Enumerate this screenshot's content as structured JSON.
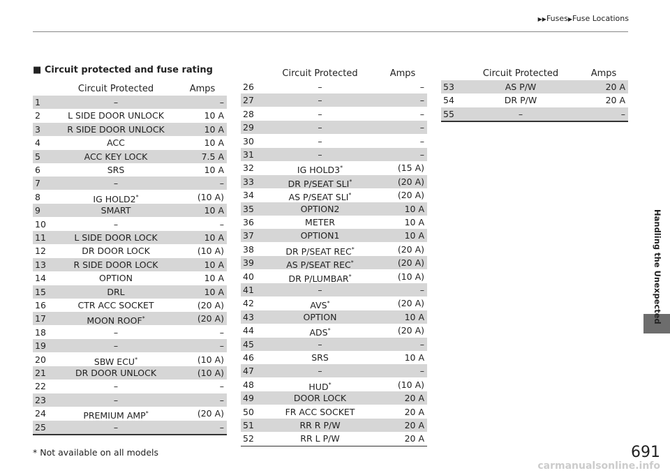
{
  "header": {
    "breadcrumb": [
      "Fuses",
      "Fuse Locations"
    ]
  },
  "section_title": "Circuit protected and fuse rating",
  "tables": [
    {
      "columns": [
        "Circuit Protected",
        "Amps"
      ],
      "rows": [
        [
          "1",
          "–",
          "–"
        ],
        [
          "2",
          "L SIDE DOOR UNLOCK",
          "10 A"
        ],
        [
          "3",
          "R SIDE DOOR UNLOCK",
          "10 A"
        ],
        [
          "4",
          "ACC",
          "10 A"
        ],
        [
          "5",
          "ACC KEY LOCK",
          "7.5 A"
        ],
        [
          "6",
          "SRS",
          "10 A"
        ],
        [
          "7",
          "–",
          "–"
        ],
        [
          "8",
          "IG HOLD2",
          "(10 A)",
          "*"
        ],
        [
          "9",
          "SMART",
          "10 A"
        ],
        [
          "10",
          "–",
          "–"
        ],
        [
          "11",
          "L SIDE DOOR LOCK",
          "10 A"
        ],
        [
          "12",
          "DR DOOR LOCK",
          "(10 A)"
        ],
        [
          "13",
          "R SIDE DOOR LOCK",
          "10 A"
        ],
        [
          "14",
          "OPTION",
          "10 A"
        ],
        [
          "15",
          "DRL",
          "10 A"
        ],
        [
          "16",
          "CTR ACC SOCKET",
          "(20 A)"
        ],
        [
          "17",
          "MOON ROOF",
          "(20 A)",
          "*"
        ],
        [
          "18",
          "–",
          "–"
        ],
        [
          "19",
          "–",
          "–"
        ],
        [
          "20",
          "SBW ECU",
          "(10 A)",
          "*"
        ],
        [
          "21",
          "DR DOOR UNLOCK",
          "(10 A)"
        ],
        [
          "22",
          "–",
          "–"
        ],
        [
          "23",
          "–",
          "–"
        ],
        [
          "24",
          "PREMIUM AMP",
          "(20 A)",
          "*"
        ],
        [
          "25",
          "–",
          "–"
        ]
      ]
    },
    {
      "columns": [
        "Circuit Protected",
        "Amps"
      ],
      "rows": [
        [
          "26",
          "–",
          "–"
        ],
        [
          "27",
          "–",
          "–"
        ],
        [
          "28",
          "–",
          "–"
        ],
        [
          "29",
          "–",
          "–"
        ],
        [
          "30",
          "–",
          "–"
        ],
        [
          "31",
          "–",
          "–"
        ],
        [
          "32",
          "IG HOLD3",
          "(15 A)",
          "*"
        ],
        [
          "33",
          "DR P/SEAT SLI",
          "(20 A)",
          "*"
        ],
        [
          "34",
          "AS P/SEAT SLI",
          "(20 A)",
          "*"
        ],
        [
          "35",
          "OPTION2",
          "10 A"
        ],
        [
          "36",
          "METER",
          "10 A"
        ],
        [
          "37",
          "OPTION1",
          "10 A"
        ],
        [
          "38",
          "DR P/SEAT REC",
          "(20 A)",
          "*"
        ],
        [
          "39",
          "AS P/SEAT REC",
          "(20 A)",
          "*"
        ],
        [
          "40",
          "DR P/LUMBAR",
          "(10 A)",
          "*"
        ],
        [
          "41",
          "–",
          "–"
        ],
        [
          "42",
          "AVS",
          "(20 A)",
          "*"
        ],
        [
          "43",
          "OPTION",
          "10 A"
        ],
        [
          "44",
          "ADS",
          "(20 A)",
          "*"
        ],
        [
          "45",
          "–",
          "–"
        ],
        [
          "46",
          "SRS",
          "10 A"
        ],
        [
          "47",
          "–",
          "–"
        ],
        [
          "48",
          "HUD",
          "(10 A)",
          "*"
        ],
        [
          "49",
          "DOOR LOCK",
          "20 A"
        ],
        [
          "50",
          "FR ACC SOCKET",
          "20 A"
        ],
        [
          "51",
          "RR R P/W",
          "20 A"
        ],
        [
          "52",
          "RR L P/W",
          "20 A"
        ]
      ]
    },
    {
      "columns": [
        "Circuit Protected",
        "Amps"
      ],
      "rows": [
        [
          "53",
          "AS P/W",
          "20 A"
        ],
        [
          "54",
          "DR P/W",
          "20 A"
        ],
        [
          "55",
          "–",
          "–"
        ]
      ]
    }
  ],
  "footnote": "* Not available on all models",
  "side_tab": "Handling the Unexpected",
  "page_number": "691",
  "watermark": "carmanualsonline.info"
}
